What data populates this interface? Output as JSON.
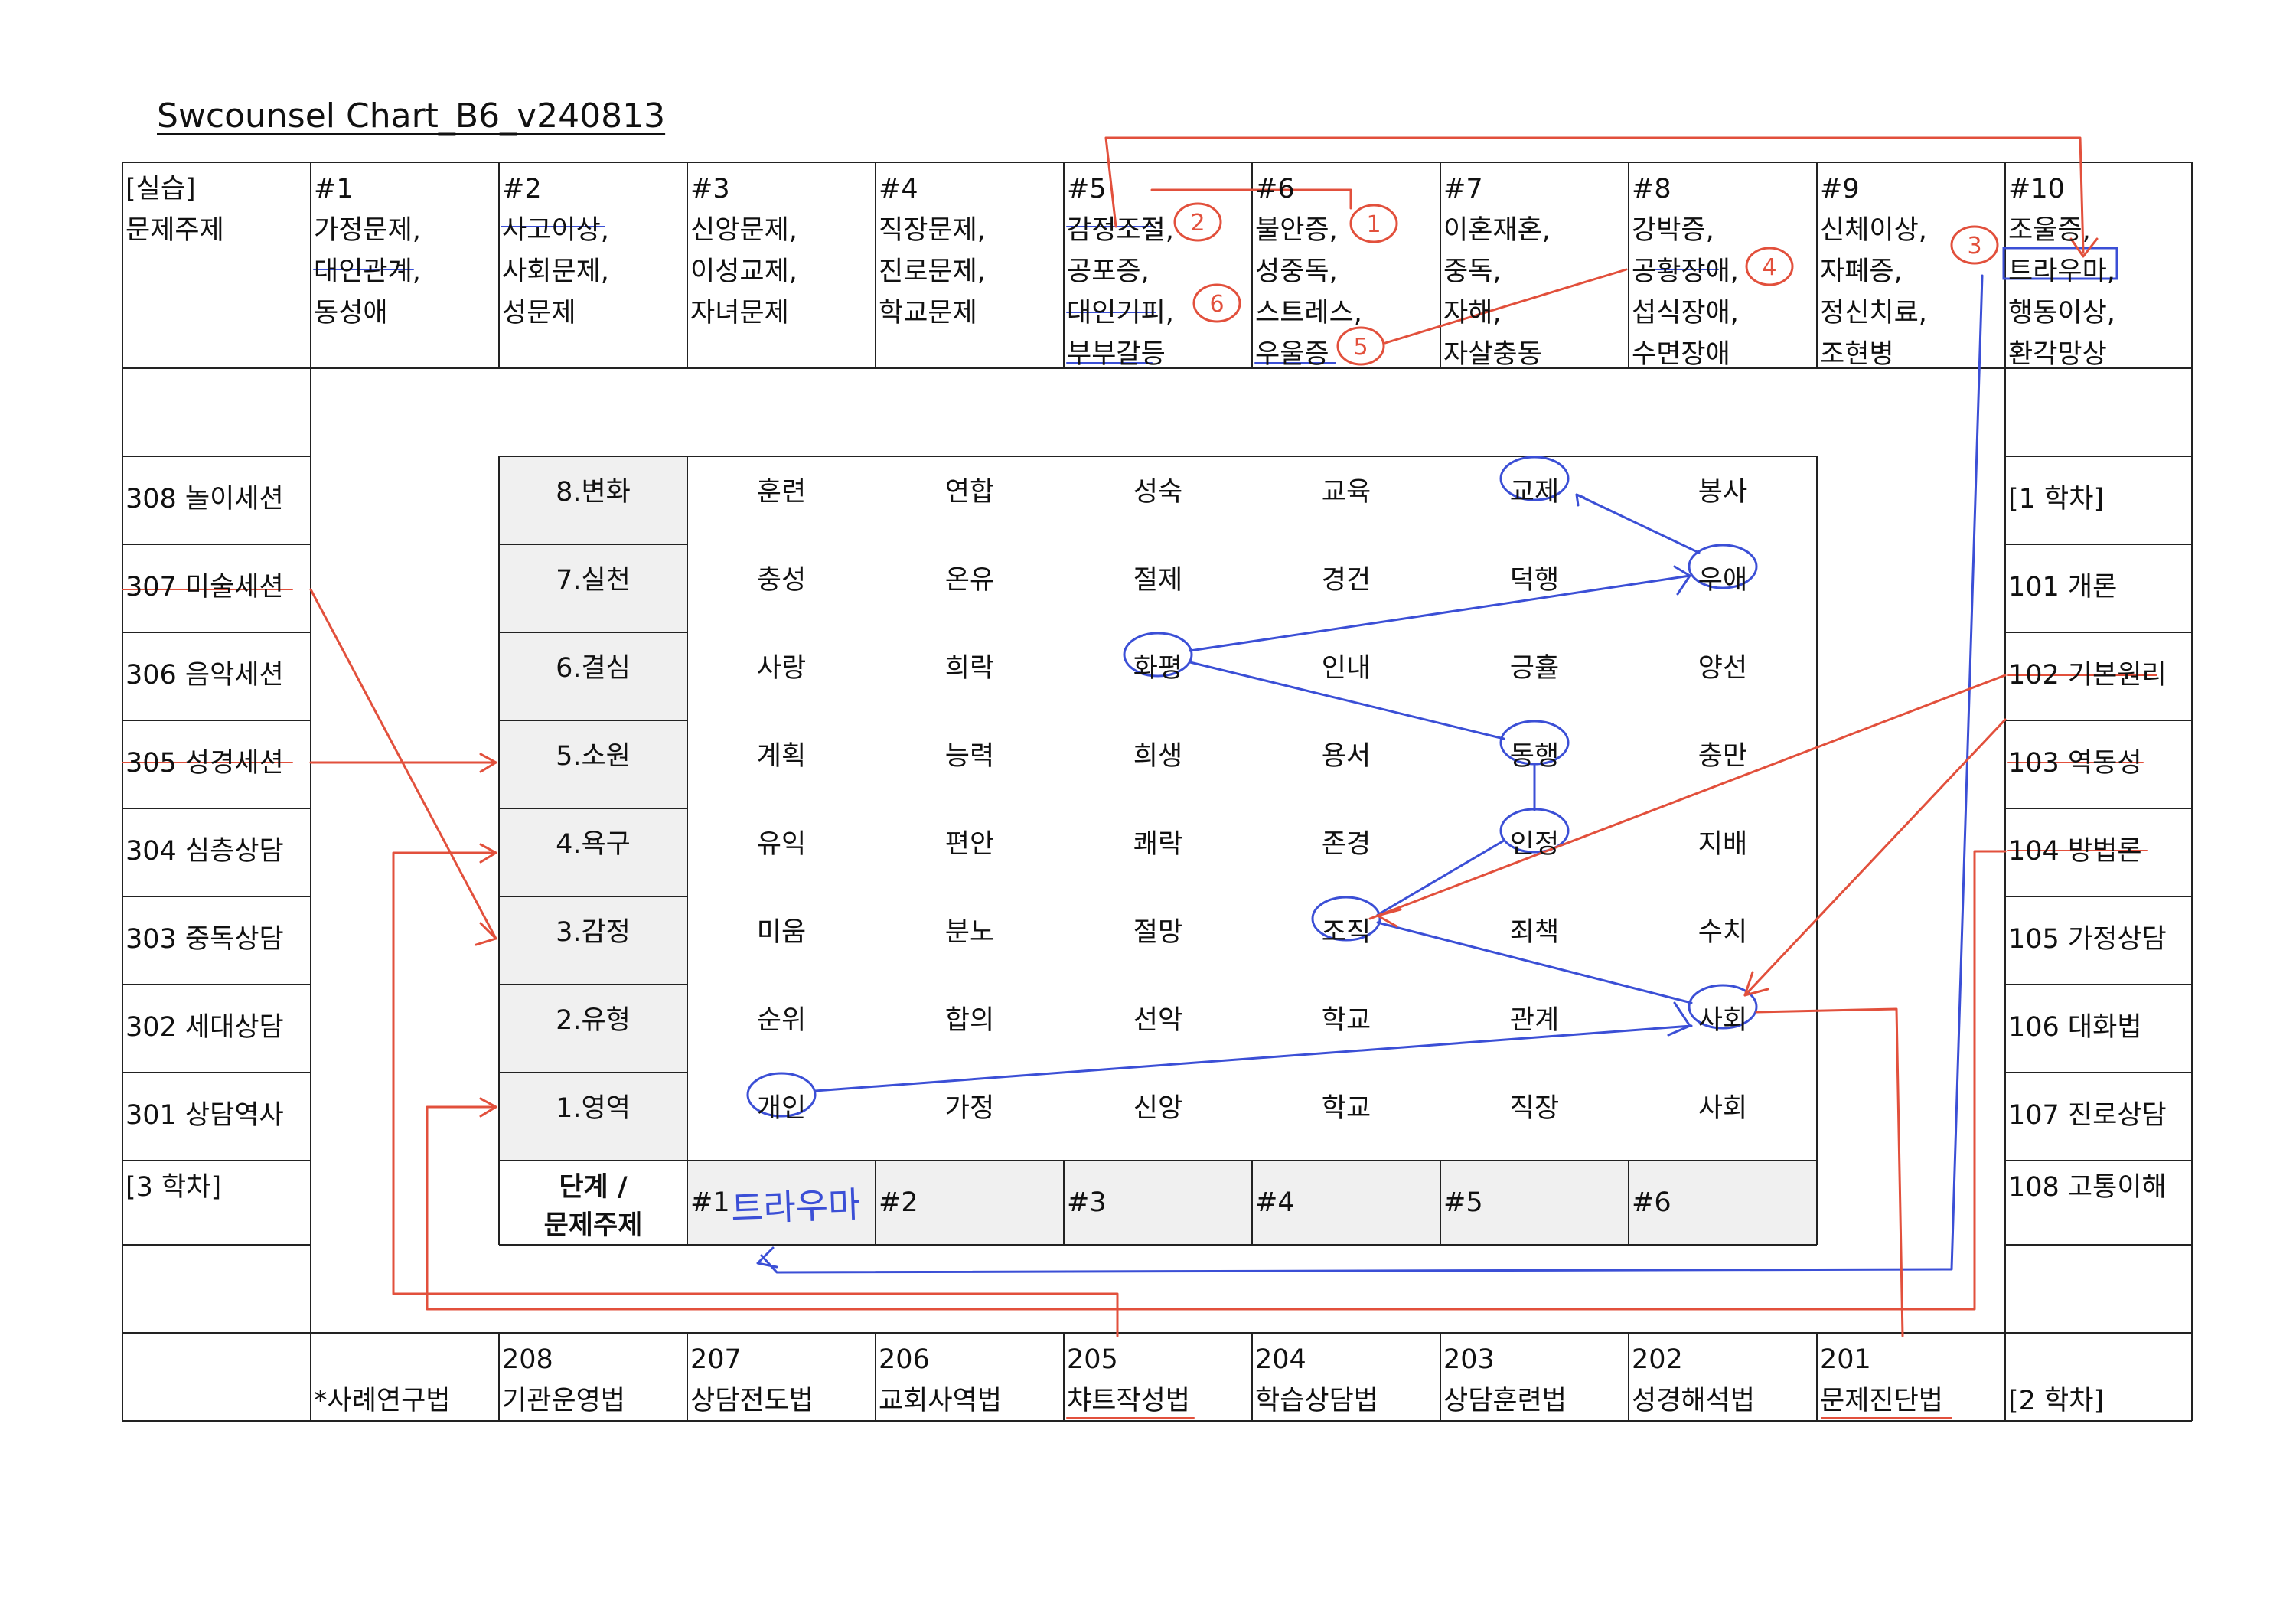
{
  "title": "Swcounsel Chart_B6_v240813",
  "header": {
    "corner": [
      "[실습]",
      "문제주제"
    ],
    "columns": [
      {
        "num": "#1",
        "items": [
          " 가정문제,",
          "대인관계,",
          "동성애"
        ]
      },
      {
        "num": "#2",
        "items": [
          "사고이상,",
          "사회문제,",
          "성문제"
        ]
      },
      {
        "num": "#3",
        "items": [
          "신앙문제,",
          "이성교제,",
          "자녀문제"
        ]
      },
      {
        "num": "#4",
        "items": [
          "직장문제,",
          "진로문제,",
          "학교문제"
        ]
      },
      {
        "num": "#5",
        "items": [
          "감정조절,",
          "공포증,",
          "대인기피,",
          "부부갈등"
        ]
      },
      {
        "num": "#6",
        "items": [
          "불안증,",
          "성중독,",
          "스트레스,",
          "우울증"
        ]
      },
      {
        "num": "#7",
        "items": [
          "이혼재혼,",
          "중독,",
          "자해,",
          "자살충동"
        ]
      },
      {
        "num": "#8",
        "items": [
          "강박증,",
          "공황장애,",
          "섭식장애,",
          "수면장애"
        ]
      },
      {
        "num": "#9",
        "items": [
          "신체이상,",
          "자폐증,",
          "정신치료,",
          "조현병"
        ]
      },
      {
        "num": "#10",
        "items": [
          "조울증,",
          "트라우마,",
          "행동이상,",
          "환각망상"
        ]
      }
    ]
  },
  "left_column": [
    "308 놀이세션",
    "307 미술세션",
    "306 음악세션",
    "305 성경세션",
    "304 심층상담",
    "303 중독상담",
    "302 세대상담",
    "301 상담역사",
    "[3 학차]"
  ],
  "right_column": [
    "[1 학차]",
    "101 개론",
    "102 기본원리",
    "103 역동성",
    "104 방법론",
    "105 가정상담",
    "106 대화법",
    "107 진로상담",
    "108 고통이해"
  ],
  "bottom_row": [
    {
      "num": "",
      "label": "*사례연구법"
    },
    {
      "num": "208",
      "label": "기관운영법"
    },
    {
      "num": "207",
      "label": "상담전도법"
    },
    {
      "num": "206",
      "label": "교회사역법"
    },
    {
      "num": "205",
      "label": "챠트작성법"
    },
    {
      "num": "204",
      "label": "학습상담법"
    },
    {
      "num": "203",
      "label": "상담훈련법"
    },
    {
      "num": "202",
      "label": "성경해석법"
    },
    {
      "num": "201",
      "label": "문제진단법"
    },
    {
      "num": "",
      "label": "[2 학차]"
    }
  ],
  "grid": {
    "stages": [
      "8.변화",
      "7.실천",
      "6.결심",
      "5.소원",
      "4.욕구",
      "3.감정",
      "2.유형",
      "1.영역"
    ],
    "rows": [
      [
        "훈련",
        "연합",
        "성숙",
        "교육",
        "교제",
        "봉사"
      ],
      [
        "충성",
        "온유",
        "절제",
        "경건",
        "덕행",
        "우애"
      ],
      [
        "사랑",
        "희락",
        "화평",
        "인내",
        "긍휼",
        "양선"
      ],
      [
        "계획",
        "능력",
        "희생",
        "용서",
        "동행",
        "충만"
      ],
      [
        "유익",
        "편안",
        "쾌락",
        "존경",
        "인정",
        "지배"
      ],
      [
        "미움",
        "분노",
        "절망",
        "조직",
        "죄책",
        "수치"
      ],
      [
        "순위",
        "합의",
        "선악",
        "학교",
        "관계",
        "사회"
      ],
      [
        "개인",
        "가정",
        "신앙",
        "학교",
        "직장",
        "사회"
      ]
    ],
    "footer_label": [
      "단계 /",
      "문제주제"
    ],
    "footer_columns": [
      "#1",
      "#2",
      "#3",
      "#4",
      "#5",
      "#6"
    ]
  },
  "handwritten": {
    "footer_note": "트라우마",
    "markers": [
      "1",
      "2",
      "3",
      "4",
      "5",
      "6"
    ]
  },
  "colors": {
    "line": "#222222",
    "shade": "#f0f0f0",
    "blue_annotation": "#3b4fd6",
    "red_annotation": "#e2503c"
  }
}
